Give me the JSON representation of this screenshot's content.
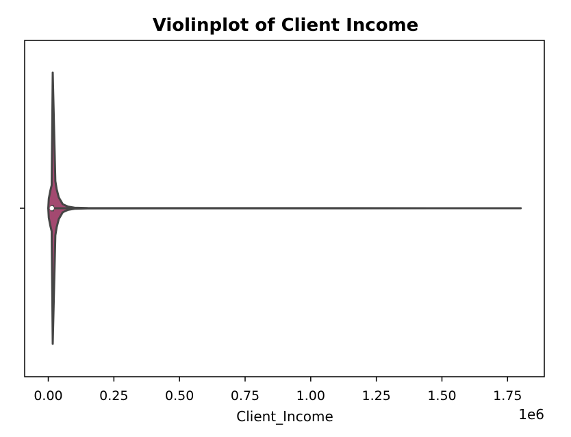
{
  "chart_data": {
    "type": "violin",
    "title": "Violinplot of Client Income",
    "xlabel": "Client_Income",
    "x_offset_label": "1e6",
    "x_ticks": [
      0,
      250000,
      500000,
      750000,
      1000000,
      1250000,
      1500000,
      1750000
    ],
    "x_tick_labels": [
      "0.00",
      "0.25",
      "0.50",
      "0.75",
      "1.00",
      "1.25",
      "1.50",
      "1.75"
    ],
    "xlim": [
      -90000,
      1890000
    ],
    "series": [
      {
        "min": 0,
        "max": 1800000,
        "median": 13500,
        "q1": 9000,
        "q3": 22000,
        "density_profile": [
          {
            "x": 0,
            "w": 0.0
          },
          {
            "x": 2000,
            "w": 0.07
          },
          {
            "x": 8000,
            "w": 0.13
          },
          {
            "x": 13000,
            "w": 0.17
          },
          {
            "x": 17000,
            "w": 1.0
          },
          {
            "x": 22000,
            "w": 0.6
          },
          {
            "x": 27000,
            "w": 0.2
          },
          {
            "x": 32000,
            "w": 0.14
          },
          {
            "x": 40000,
            "w": 0.08
          },
          {
            "x": 55000,
            "w": 0.03
          },
          {
            "x": 75000,
            "w": 0.012
          },
          {
            "x": 100000,
            "w": 0.004
          },
          {
            "x": 150000,
            "w": 0.001
          },
          {
            "x": 1800000,
            "w": 0.0
          }
        ]
      }
    ],
    "colors": {
      "violin_fill": "#a34970",
      "outline": "#454545",
      "box": "#454545",
      "median": "#ffffff"
    },
    "grid": false
  }
}
